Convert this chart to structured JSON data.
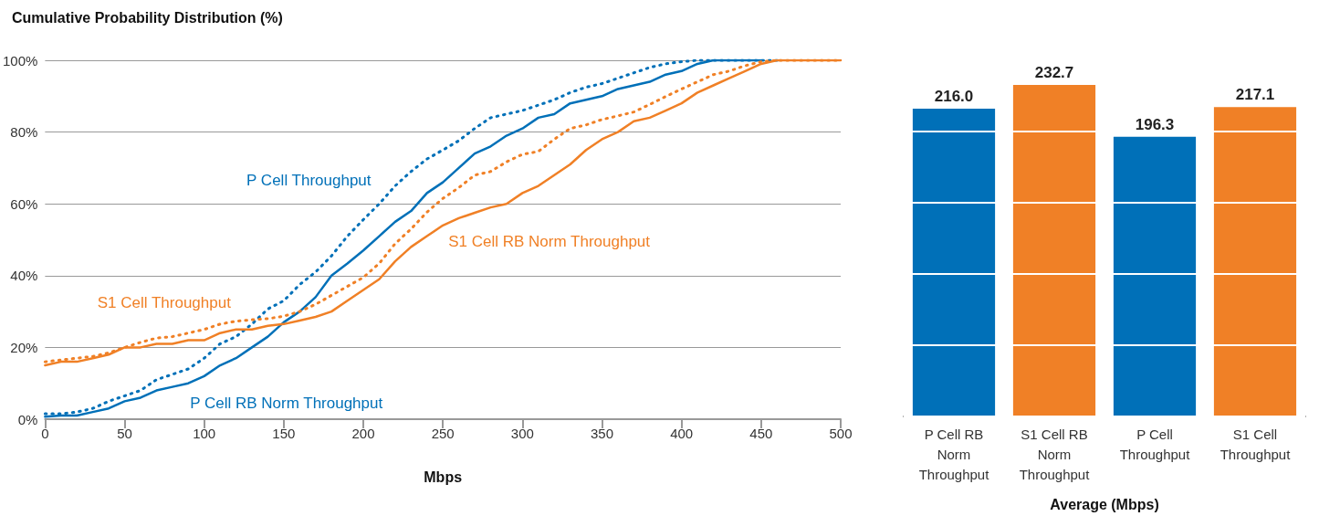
{
  "chart_data": [
    {
      "type": "line",
      "title": "Cumulative Probability Distribution (%)",
      "xlabel": "Mbps",
      "x": [
        0,
        10,
        20,
        30,
        40,
        50,
        60,
        70,
        80,
        90,
        100,
        110,
        120,
        130,
        140,
        150,
        160,
        170,
        180,
        190,
        200,
        210,
        220,
        230,
        240,
        250,
        260,
        270,
        280,
        290,
        300,
        310,
        320,
        330,
        340,
        350,
        360,
        370,
        380,
        390,
        400,
        410,
        420,
        430,
        440,
        450,
        460,
        470,
        480,
        490,
        500
      ],
      "series": [
        {
          "name": "P Cell Throughput",
          "color": "#0070b8",
          "line_style": "dotted",
          "values": [
            1.5,
            1.5,
            2,
            3,
            5,
            6.5,
            8,
            11,
            12.5,
            14,
            17,
            21,
            23,
            26.5,
            30.7,
            33,
            37.5,
            41,
            45.5,
            51,
            55.6,
            60,
            65,
            69,
            72.5,
            75,
            77.6,
            81,
            84,
            85,
            86,
            87.5,
            89,
            91,
            92.5,
            93.5,
            95,
            96.5,
            98,
            99,
            99.6,
            100,
            100,
            100,
            100,
            100,
            100,
            null,
            null,
            null,
            null
          ]
        },
        {
          "name": "P Cell RB Norm Throughput",
          "color": "#0070b8",
          "line_style": "solid",
          "values": [
            0.7,
            1,
            1,
            2,
            3,
            5,
            6,
            8,
            9,
            10,
            12,
            15,
            17,
            20,
            23,
            27,
            30,
            34,
            40,
            43.4,
            47,
            51,
            55,
            58,
            63,
            66,
            70,
            74,
            76,
            79,
            81,
            84,
            85,
            88,
            89,
            90,
            92,
            93,
            94,
            96,
            97,
            99,
            100,
            100,
            100,
            100,
            null,
            null,
            null,
            null,
            null
          ]
        },
        {
          "name": "S1 Cell Throughput",
          "color": "#f08026",
          "line_style": "dotted",
          "values": [
            16,
            16.5,
            17,
            17.5,
            18.5,
            20,
            21.4,
            22.6,
            23,
            24,
            25,
            26.5,
            27.3,
            27.7,
            28,
            28.7,
            30,
            32,
            34.5,
            37,
            39.5,
            43.4,
            48.9,
            53,
            57.7,
            61.5,
            64.5,
            68,
            69,
            71.7,
            73.8,
            74.6,
            78,
            81,
            82,
            83.5,
            84.5,
            85.6,
            87.7,
            89.9,
            92,
            94,
            96,
            97,
            98.5,
            99.6,
            100,
            100,
            100,
            100,
            100
          ]
        },
        {
          "name": "S1 Cell RB Norm Throughput",
          "color": "#f08026",
          "line_style": "solid",
          "values": [
            15,
            16,
            16,
            17,
            18,
            20,
            20,
            21,
            21,
            22,
            22,
            24,
            25,
            25,
            26,
            26.5,
            27.5,
            28.5,
            30,
            33,
            36,
            39,
            44,
            48,
            51,
            54,
            56,
            57.5,
            59,
            60,
            63,
            65,
            68,
            71,
            75,
            78,
            80,
            83,
            84,
            86,
            88,
            91,
            93,
            95,
            97,
            99,
            100,
            100,
            100,
            100,
            100
          ]
        }
      ],
      "xlim": [
        0,
        500
      ],
      "xticks": [
        0,
        50,
        100,
        150,
        200,
        250,
        300,
        350,
        400,
        450,
        500
      ],
      "ylim": [
        0,
        100
      ],
      "yticks": [
        {
          "value": 0,
          "label": "0%"
        },
        {
          "value": 20,
          "label": "20%"
        },
        {
          "value": 40,
          "label": "40%"
        },
        {
          "value": 60,
          "label": "60%"
        },
        {
          "value": 80,
          "label": "80%"
        },
        {
          "value": 100,
          "label": "100%"
        }
      ],
      "grid": "y",
      "marker": "none",
      "legend": false
    },
    {
      "type": "bar",
      "xlabel": "Average (Mbps)",
      "categories": [
        "P Cell RB\nNorm\nThroughput",
        "S1 Cell RB\nNorm\nThroughput",
        "P Cell\nThroughput",
        "S1 Cell\nThroughput"
      ],
      "values": [
        216.0,
        232.7,
        196.3,
        217.1
      ],
      "colors": [
        "#0070b8",
        "#f08026",
        "#0070b8",
        "#f08026"
      ],
      "value_labels": [
        "216.0",
        "232.7",
        "196.3",
        "217.1"
      ],
      "yticks": [
        {
          "value": 0,
          "label": null
        },
        {
          "value": 50,
          "label": null
        },
        {
          "value": 100,
          "label": null
        },
        {
          "value": 150,
          "label": null
        },
        {
          "value": 200,
          "label": null
        }
      ],
      "grid": "y",
      "tick_labels": "x",
      "legend": false
    }
  ]
}
